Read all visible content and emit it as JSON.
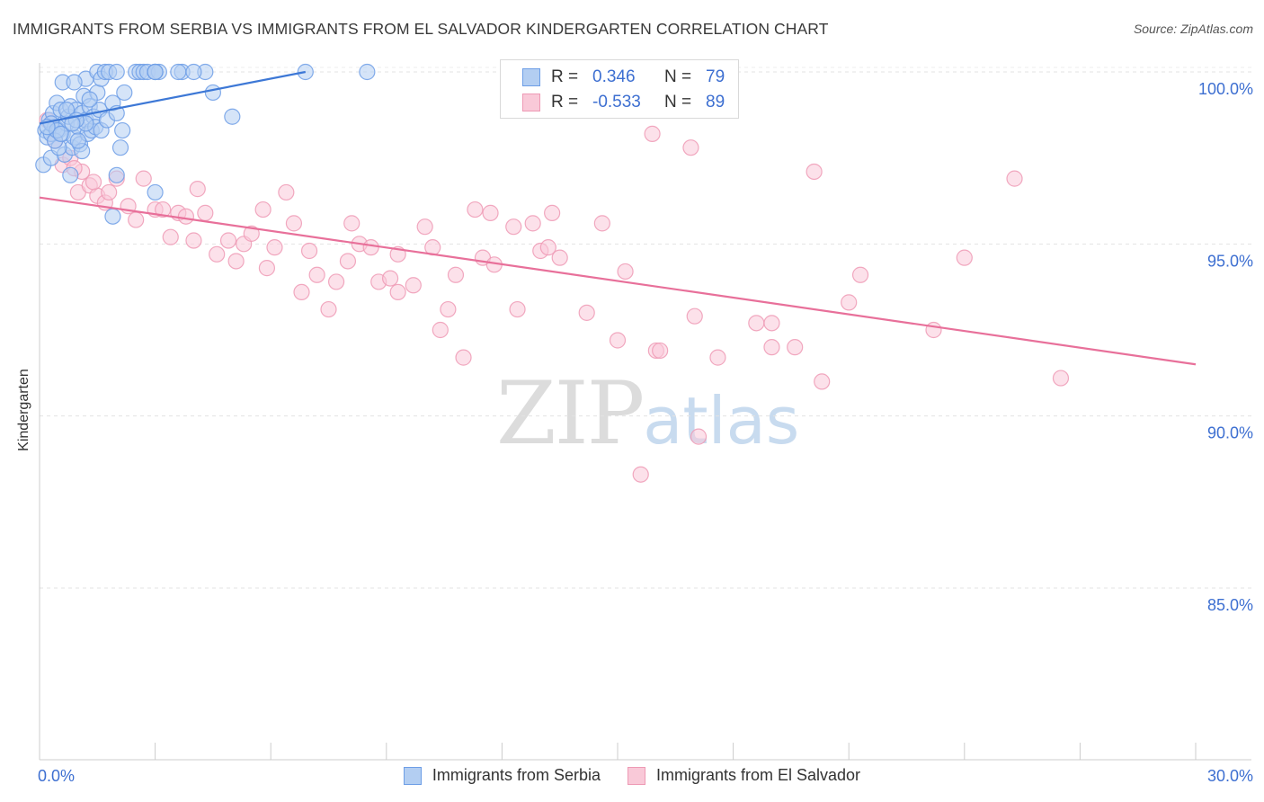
{
  "title": "IMMIGRANTS FROM SERBIA VS IMMIGRANTS FROM EL SALVADOR KINDERGARTEN CORRELATION CHART",
  "source": "Source: ZipAtlas.com",
  "watermark": {
    "zip": "ZIP",
    "atlas": "atlas"
  },
  "legend": {
    "r_label": "R =",
    "n_label": "N =",
    "series": [
      {
        "name": "Immigrants from Serbia",
        "r": "0.346",
        "n": "79"
      },
      {
        "name": "Immigrants from El Salvador",
        "r": "-0.533",
        "n": "89"
      }
    ]
  },
  "chart_data": {
    "type": "scatter",
    "title": "IMMIGRANTS FROM SERBIA VS IMMIGRANTS FROM EL SALVADOR KINDERGARTEN CORRELATION CHART",
    "xlabel": "",
    "ylabel": "Kindergarten",
    "xlim": [
      0,
      30
    ],
    "ylim": [
      80.5,
      100.7
    ],
    "x_tick_labels": [
      {
        "value": 0,
        "label": "0.0%"
      },
      {
        "value": 30,
        "label": "30.0%"
      }
    ],
    "y_tick_labels": [
      {
        "value": 100,
        "label": "100.0%"
      },
      {
        "value": 95,
        "label": "95.0%"
      },
      {
        "value": 90,
        "label": "90.0%"
      },
      {
        "value": 85,
        "label": "85.0%"
      }
    ],
    "grid": true,
    "colors": {
      "serbia": "#6d9ee6",
      "serbia_fill": "#b3cef2",
      "salvador": "#ee9ab5",
      "salvador_fill": "#f9c9d8",
      "serbia_line": "#3d78d6",
      "salvador_line": "#e8709a",
      "axis_text": "#3d6fd1"
    },
    "series": [
      {
        "name": "Immigrants from Serbia",
        "color": "#6d9ee6",
        "trend": {
          "x": [
            0.0,
            6.9
          ],
          "y": [
            98.5,
            100.0
          ]
        },
        "points": [
          [
            0.1,
            97.3
          ],
          [
            0.15,
            98.3
          ],
          [
            0.2,
            98.1
          ],
          [
            0.25,
            98.6
          ],
          [
            0.3,
            98.2
          ],
          [
            0.3,
            97.5
          ],
          [
            0.35,
            98.8
          ],
          [
            0.4,
            98.4
          ],
          [
            0.45,
            99.1
          ],
          [
            0.5,
            98.3
          ],
          [
            0.55,
            98.9
          ],
          [
            0.6,
            98.2
          ],
          [
            0.65,
            97.6
          ],
          [
            0.7,
            98.5
          ],
          [
            0.75,
            98.7
          ],
          [
            0.8,
            99.0
          ],
          [
            0.85,
            97.8
          ],
          [
            0.9,
            98.1
          ],
          [
            0.95,
            98.9
          ],
          [
            1.0,
            98.4
          ],
          [
            1.05,
            97.9
          ],
          [
            1.1,
            98.8
          ],
          [
            1.15,
            99.3
          ],
          [
            1.2,
            98.6
          ],
          [
            1.25,
            98.2
          ],
          [
            1.3,
            99.0
          ],
          [
            1.35,
            98.3
          ],
          [
            1.4,
            98.7
          ],
          [
            1.45,
            98.4
          ],
          [
            1.5,
            99.4
          ],
          [
            1.55,
            98.9
          ],
          [
            1.6,
            98.3
          ],
          [
            1.1,
            97.7
          ],
          [
            1.2,
            99.8
          ],
          [
            1.3,
            99.2
          ],
          [
            1.5,
            100.0
          ],
          [
            1.6,
            99.8
          ],
          [
            1.7,
            100.0
          ],
          [
            1.75,
            98.6
          ],
          [
            1.8,
            100.0
          ],
          [
            1.9,
            99.1
          ],
          [
            2.0,
            98.8
          ],
          [
            2.1,
            97.8
          ],
          [
            2.15,
            98.3
          ],
          [
            2.2,
            99.4
          ],
          [
            0.6,
            99.7
          ],
          [
            0.9,
            99.7
          ],
          [
            2.5,
            100.0
          ],
          [
            2.6,
            100.0
          ],
          [
            2.7,
            100.0
          ],
          [
            2.8,
            100.0
          ],
          [
            3.0,
            100.0
          ],
          [
            3.1,
            100.0
          ],
          [
            3.0,
            100.0
          ],
          [
            3.7,
            100.0
          ],
          [
            3.0,
            100.0
          ],
          [
            3.6,
            100.0
          ],
          [
            4.3,
            100.0
          ],
          [
            4.5,
            99.4
          ],
          [
            4.0,
            100.0
          ],
          [
            5.0,
            98.7
          ],
          [
            2.0,
            100.0
          ],
          [
            6.9,
            100.0
          ],
          [
            8.5,
            100.0
          ],
          [
            2.0,
            97.0
          ],
          [
            3.0,
            96.5
          ],
          [
            1.9,
            95.8
          ],
          [
            0.8,
            97.0
          ],
          [
            0.5,
            97.8
          ],
          [
            0.4,
            98.0
          ],
          [
            0.3,
            98.5
          ],
          [
            0.45,
            98.3
          ],
          [
            0.55,
            98.2
          ],
          [
            1.0,
            98.0
          ],
          [
            1.2,
            98.5
          ],
          [
            0.7,
            98.9
          ],
          [
            0.95,
            98.6
          ],
          [
            0.85,
            98.5
          ],
          [
            0.2,
            98.4
          ]
        ]
      },
      {
        "name": "Immigrants from El Salvador",
        "color": "#ee9ab5",
        "trend": {
          "x": [
            0.0,
            30.0
          ],
          "y": [
            96.35,
            91.5
          ]
        },
        "points": [
          [
            0.2,
            98.6
          ],
          [
            0.4,
            98.0
          ],
          [
            0.6,
            97.3
          ],
          [
            0.8,
            97.5
          ],
          [
            1.0,
            96.5
          ],
          [
            1.1,
            97.1
          ],
          [
            1.3,
            96.7
          ],
          [
            1.5,
            96.4
          ],
          [
            1.7,
            96.2
          ],
          [
            1.8,
            96.5
          ],
          [
            2.0,
            96.9
          ],
          [
            2.3,
            96.1
          ],
          [
            2.5,
            95.7
          ],
          [
            2.7,
            96.9
          ],
          [
            3.0,
            96.0
          ],
          [
            3.2,
            96.0
          ],
          [
            3.4,
            95.2
          ],
          [
            3.6,
            95.9
          ],
          [
            3.8,
            95.8
          ],
          [
            4.0,
            95.1
          ],
          [
            4.1,
            96.6
          ],
          [
            4.3,
            95.9
          ],
          [
            4.6,
            94.7
          ],
          [
            4.9,
            95.1
          ],
          [
            5.1,
            94.5
          ],
          [
            5.3,
            95.0
          ],
          [
            5.5,
            95.3
          ],
          [
            5.8,
            96.0
          ],
          [
            5.9,
            94.3
          ],
          [
            6.1,
            94.9
          ],
          [
            6.4,
            96.5
          ],
          [
            6.6,
            95.6
          ],
          [
            6.8,
            93.6
          ],
          [
            7.0,
            94.8
          ],
          [
            7.2,
            94.1
          ],
          [
            7.5,
            93.1
          ],
          [
            7.7,
            93.9
          ],
          [
            8.0,
            94.5
          ],
          [
            8.1,
            95.6
          ],
          [
            8.3,
            95.0
          ],
          [
            8.6,
            94.9
          ],
          [
            8.8,
            93.9
          ],
          [
            9.1,
            94.0
          ],
          [
            9.3,
            94.7
          ],
          [
            9.3,
            93.6
          ],
          [
            9.7,
            93.8
          ],
          [
            10.0,
            95.5
          ],
          [
            10.2,
            94.9
          ],
          [
            10.4,
            92.5
          ],
          [
            10.6,
            93.1
          ],
          [
            10.8,
            94.1
          ],
          [
            11.0,
            91.7
          ],
          [
            11.3,
            96.0
          ],
          [
            11.5,
            94.6
          ],
          [
            11.7,
            95.9
          ],
          [
            11.8,
            94.4
          ],
          [
            12.3,
            95.5
          ],
          [
            12.4,
            93.1
          ],
          [
            12.8,
            95.6
          ],
          [
            13.0,
            94.8
          ],
          [
            13.2,
            94.9
          ],
          [
            13.3,
            95.9
          ],
          [
            13.5,
            94.6
          ],
          [
            14.2,
            93.0
          ],
          [
            14.6,
            95.6
          ],
          [
            15.0,
            92.2
          ],
          [
            15.2,
            94.2
          ],
          [
            15.6,
            88.3
          ],
          [
            15.9,
            98.2
          ],
          [
            16.0,
            91.9
          ],
          [
            16.1,
            91.9
          ],
          [
            16.9,
            97.8
          ],
          [
            17.0,
            92.9
          ],
          [
            17.1,
            89.4
          ],
          [
            17.6,
            91.7
          ],
          [
            18.6,
            92.7
          ],
          [
            19.0,
            92.0
          ],
          [
            19.0,
            92.7
          ],
          [
            19.6,
            92.0
          ],
          [
            20.1,
            97.1
          ],
          [
            20.3,
            91.0
          ],
          [
            21.0,
            93.3
          ],
          [
            21.3,
            94.1
          ],
          [
            23.2,
            92.5
          ],
          [
            24.0,
            94.6
          ],
          [
            25.3,
            96.9
          ],
          [
            26.5,
            91.1
          ],
          [
            1.4,
            96.8
          ],
          [
            0.9,
            97.2
          ]
        ]
      }
    ]
  }
}
